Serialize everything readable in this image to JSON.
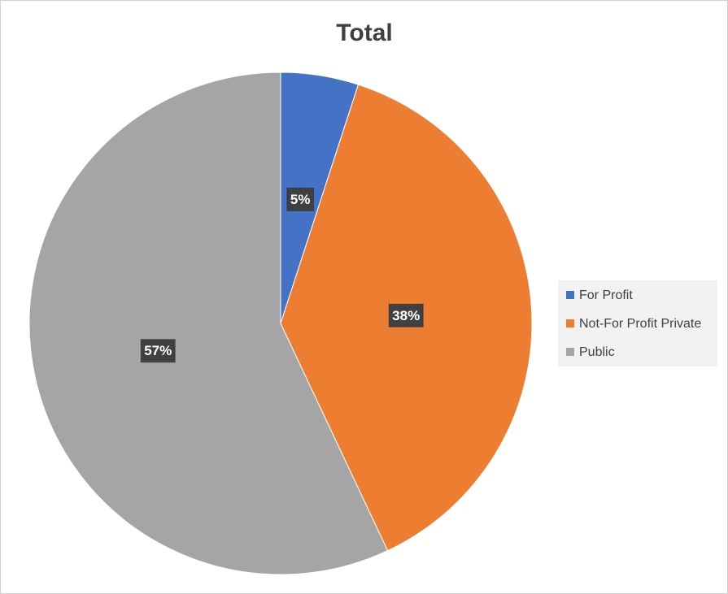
{
  "chart_data": {
    "type": "pie",
    "title": "Total",
    "categories": [
      "For Profit",
      "Not-For Profit Private",
      "Public"
    ],
    "values": [
      5,
      38,
      57
    ],
    "value_labels": [
      "5%",
      "38%",
      "57%"
    ],
    "colors": [
      "#4472c4",
      "#ed7d31",
      "#a5a5a5"
    ],
    "legend": "right"
  }
}
